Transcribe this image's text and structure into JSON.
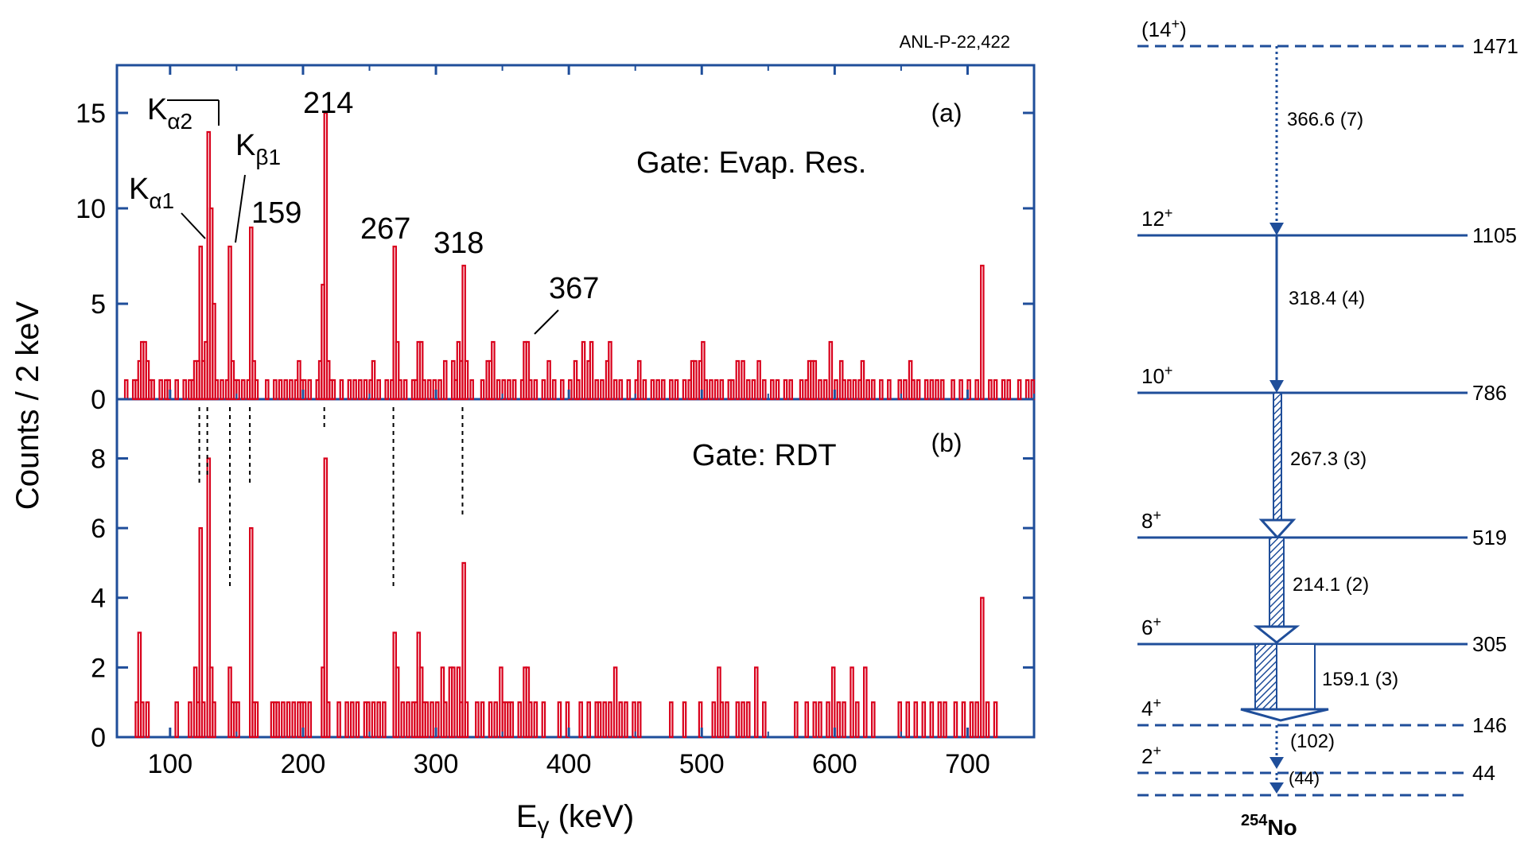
{
  "report_id": "ANL-P-22,422",
  "colors": {
    "axis": "#1f4e9a",
    "spectrum": "#d9001b",
    "text": "#000000",
    "scheme": "#1f4e9a"
  },
  "chart_data": [
    {
      "type": "histogram",
      "panel": "(a)",
      "gate": "Gate: Evap. Res.",
      "xlabel": "Eγ (keV)",
      "ylabel": "Counts / 2 keV",
      "xlim": [
        60,
        750
      ],
      "ylim": [
        0,
        17.5
      ],
      "yticks": [
        0,
        5,
        10,
        15
      ],
      "xticks": [
        100,
        200,
        300,
        400,
        500,
        600,
        700
      ],
      "bin_width_keV": 2,
      "peak_labels": [
        {
          "text": "Kα1",
          "energy": 122
        },
        {
          "text": "Kα2",
          "energy": 128
        },
        {
          "text": "Kβ1",
          "energy": 145
        },
        {
          "text": "159",
          "energy": 159
        },
        {
          "text": "214",
          "energy": 216
        },
        {
          "text": "267",
          "energy": 269
        },
        {
          "text": "318",
          "energy": 320
        },
        {
          "text": "367",
          "energy": 368
        }
      ],
      "bins": [
        [
          66,
          1
        ],
        [
          72,
          1
        ],
        [
          74,
          1
        ],
        [
          76,
          2
        ],
        [
          78,
          3
        ],
        [
          80,
          3
        ],
        [
          82,
          2
        ],
        [
          84,
          1
        ],
        [
          86,
          1
        ],
        [
          92,
          1
        ],
        [
          96,
          1
        ],
        [
          98,
          1
        ],
        [
          104,
          1
        ],
        [
          110,
          1
        ],
        [
          114,
          1
        ],
        [
          116,
          1
        ],
        [
          118,
          2
        ],
        [
          120,
          2
        ],
        [
          122,
          8
        ],
        [
          124,
          2
        ],
        [
          126,
          3
        ],
        [
          128,
          14
        ],
        [
          130,
          10
        ],
        [
          132,
          5
        ],
        [
          134,
          1
        ],
        [
          138,
          1
        ],
        [
          142,
          1
        ],
        [
          144,
          8
        ],
        [
          146,
          2
        ],
        [
          148,
          1
        ],
        [
          150,
          1
        ],
        [
          154,
          1
        ],
        [
          158,
          1
        ],
        [
          160,
          9
        ],
        [
          162,
          2
        ],
        [
          164,
          1
        ],
        [
          172,
          1
        ],
        [
          178,
          1
        ],
        [
          182,
          1
        ],
        [
          186,
          1
        ],
        [
          190,
          1
        ],
        [
          194,
          1
        ],
        [
          196,
          2
        ],
        [
          198,
          1
        ],
        [
          200,
          1
        ],
        [
          204,
          1
        ],
        [
          210,
          1
        ],
        [
          212,
          2
        ],
        [
          214,
          6
        ],
        [
          216,
          15
        ],
        [
          218,
          2
        ],
        [
          220,
          1
        ],
        [
          222,
          1
        ],
        [
          228,
          1
        ],
        [
          234,
          1
        ],
        [
          238,
          1
        ],
        [
          242,
          1
        ],
        [
          246,
          1
        ],
        [
          250,
          1
        ],
        [
          252,
          2
        ],
        [
          256,
          1
        ],
        [
          262,
          1
        ],
        [
          266,
          1
        ],
        [
          268,
          8
        ],
        [
          270,
          3
        ],
        [
          272,
          1
        ],
        [
          276,
          1
        ],
        [
          282,
          1
        ],
        [
          284,
          1
        ],
        [
          286,
          3
        ],
        [
          288,
          3
        ],
        [
          290,
          1
        ],
        [
          294,
          1
        ],
        [
          298,
          1
        ],
        [
          302,
          1
        ],
        [
          306,
          2
        ],
        [
          312,
          2
        ],
        [
          314,
          1
        ],
        [
          316,
          3
        ],
        [
          318,
          2
        ],
        [
          320,
          7
        ],
        [
          322,
          2
        ],
        [
          326,
          1
        ],
        [
          334,
          1
        ],
        [
          338,
          2
        ],
        [
          340,
          2
        ],
        [
          342,
          3
        ],
        [
          346,
          1
        ],
        [
          350,
          1
        ],
        [
          354,
          1
        ],
        [
          358,
          1
        ],
        [
          364,
          1
        ],
        [
          366,
          3
        ],
        [
          368,
          3
        ],
        [
          370,
          1
        ],
        [
          374,
          1
        ],
        [
          380,
          1
        ],
        [
          384,
          2
        ],
        [
          388,
          1
        ],
        [
          394,
          1
        ],
        [
          400,
          1
        ],
        [
          404,
          2
        ],
        [
          406,
          1
        ],
        [
          410,
          3
        ],
        [
          414,
          2
        ],
        [
          416,
          3
        ],
        [
          420,
          1
        ],
        [
          424,
          1
        ],
        [
          428,
          2
        ],
        [
          430,
          3
        ],
        [
          434,
          1
        ],
        [
          438,
          1
        ],
        [
          444,
          1
        ],
        [
          450,
          1
        ],
        [
          452,
          2
        ],
        [
          456,
          1
        ],
        [
          462,
          1
        ],
        [
          466,
          1
        ],
        [
          470,
          1
        ],
        [
          476,
          1
        ],
        [
          480,
          1
        ],
        [
          486,
          1
        ],
        [
          490,
          1
        ],
        [
          492,
          2
        ],
        [
          494,
          2
        ],
        [
          498,
          2
        ],
        [
          500,
          3
        ],
        [
          502,
          1
        ],
        [
          506,
          1
        ],
        [
          510,
          1
        ],
        [
          514,
          1
        ],
        [
          520,
          1
        ],
        [
          522,
          1
        ],
        [
          526,
          2
        ],
        [
          530,
          2
        ],
        [
          534,
          1
        ],
        [
          538,
          1
        ],
        [
          542,
          2
        ],
        [
          546,
          1
        ],
        [
          552,
          1
        ],
        [
          556,
          1
        ],
        [
          562,
          1
        ],
        [
          566,
          1
        ],
        [
          574,
          1
        ],
        [
          578,
          1
        ],
        [
          580,
          2
        ],
        [
          582,
          2
        ],
        [
          584,
          2
        ],
        [
          588,
          1
        ],
        [
          592,
          1
        ],
        [
          596,
          3
        ],
        [
          600,
          1
        ],
        [
          604,
          2
        ],
        [
          606,
          1
        ],
        [
          610,
          1
        ],
        [
          614,
          1
        ],
        [
          618,
          1
        ],
        [
          620,
          2
        ],
        [
          624,
          1
        ],
        [
          628,
          1
        ],
        [
          634,
          1
        ],
        [
          640,
          1
        ],
        [
          648,
          1
        ],
        [
          652,
          1
        ],
        [
          656,
          2
        ],
        [
          658,
          1
        ],
        [
          662,
          1
        ],
        [
          668,
          1
        ],
        [
          672,
          1
        ],
        [
          676,
          1
        ],
        [
          680,
          1
        ],
        [
          688,
          1
        ],
        [
          694,
          1
        ],
        [
          700,
          1
        ],
        [
          706,
          1
        ],
        [
          710,
          7
        ],
        [
          716,
          1
        ],
        [
          720,
          1
        ],
        [
          726,
          1
        ],
        [
          730,
          1
        ],
        [
          738,
          1
        ],
        [
          744,
          1
        ],
        [
          748,
          1
        ]
      ]
    },
    {
      "type": "histogram",
      "panel": "(b)",
      "gate": "Gate: RDT",
      "xlabel": "Eγ (keV)",
      "ylabel": "Counts / 2 keV",
      "xlim": [
        60,
        750
      ],
      "ylim": [
        0,
        9.7
      ],
      "yticks": [
        0,
        2,
        4,
        6,
        8
      ],
      "xticks": [
        100,
        200,
        300,
        400,
        500,
        600,
        700
      ],
      "bin_width_keV": 2,
      "bins": [
        [
          74,
          1
        ],
        [
          76,
          3
        ],
        [
          78,
          1
        ],
        [
          82,
          1
        ],
        [
          104,
          1
        ],
        [
          114,
          1
        ],
        [
          118,
          2
        ],
        [
          120,
          1
        ],
        [
          122,
          6
        ],
        [
          124,
          1
        ],
        [
          128,
          8
        ],
        [
          130,
          2
        ],
        [
          132,
          1
        ],
        [
          144,
          2
        ],
        [
          146,
          1
        ],
        [
          148,
          1
        ],
        [
          150,
          1
        ],
        [
          160,
          6
        ],
        [
          162,
          1
        ],
        [
          164,
          1
        ],
        [
          176,
          1
        ],
        [
          178,
          1
        ],
        [
          180,
          1
        ],
        [
          184,
          1
        ],
        [
          188,
          1
        ],
        [
          192,
          1
        ],
        [
          196,
          1
        ],
        [
          198,
          1
        ],
        [
          200,
          1
        ],
        [
          204,
          1
        ],
        [
          214,
          2
        ],
        [
          216,
          8
        ],
        [
          218,
          1
        ],
        [
          226,
          1
        ],
        [
          232,
          1
        ],
        [
          236,
          1
        ],
        [
          240,
          1
        ],
        [
          246,
          1
        ],
        [
          248,
          1
        ],
        [
          252,
          1
        ],
        [
          256,
          1
        ],
        [
          260,
          1
        ],
        [
          268,
          3
        ],
        [
          270,
          2
        ],
        [
          274,
          1
        ],
        [
          278,
          1
        ],
        [
          282,
          1
        ],
        [
          284,
          1
        ],
        [
          286,
          3
        ],
        [
          288,
          2
        ],
        [
          290,
          1
        ],
        [
          292,
          1
        ],
        [
          296,
          1
        ],
        [
          300,
          1
        ],
        [
          304,
          2
        ],
        [
          306,
          1
        ],
        [
          310,
          2
        ],
        [
          312,
          2
        ],
        [
          316,
          2
        ],
        [
          318,
          1
        ],
        [
          320,
          5
        ],
        [
          322,
          1
        ],
        [
          330,
          1
        ],
        [
          334,
          1
        ],
        [
          340,
          1
        ],
        [
          344,
          1
        ],
        [
          348,
          2
        ],
        [
          350,
          1
        ],
        [
          352,
          1
        ],
        [
          354,
          1
        ],
        [
          356,
          1
        ],
        [
          362,
          1
        ],
        [
          366,
          2
        ],
        [
          368,
          2
        ],
        [
          370,
          1
        ],
        [
          374,
          1
        ],
        [
          380,
          1
        ],
        [
          392,
          1
        ],
        [
          398,
          1
        ],
        [
          408,
          1
        ],
        [
          414,
          1
        ],
        [
          420,
          1
        ],
        [
          422,
          1
        ],
        [
          426,
          1
        ],
        [
          430,
          1
        ],
        [
          434,
          2
        ],
        [
          438,
          1
        ],
        [
          442,
          1
        ],
        [
          448,
          1
        ],
        [
          452,
          1
        ],
        [
          476,
          1
        ],
        [
          486,
          1
        ],
        [
          498,
          1
        ],
        [
          508,
          1
        ],
        [
          512,
          2
        ],
        [
          514,
          1
        ],
        [
          518,
          1
        ],
        [
          526,
          1
        ],
        [
          530,
          1
        ],
        [
          534,
          1
        ],
        [
          540,
          2
        ],
        [
          546,
          1
        ],
        [
          570,
          1
        ],
        [
          578,
          1
        ],
        [
          584,
          1
        ],
        [
          588,
          1
        ],
        [
          594,
          1
        ],
        [
          598,
          2
        ],
        [
          602,
          1
        ],
        [
          606,
          1
        ],
        [
          612,
          2
        ],
        [
          616,
          1
        ],
        [
          622,
          2
        ],
        [
          628,
          1
        ],
        [
          648,
          1
        ],
        [
          654,
          1
        ],
        [
          660,
          1
        ],
        [
          666,
          1
        ],
        [
          672,
          1
        ],
        [
          678,
          1
        ],
        [
          682,
          1
        ],
        [
          690,
          1
        ],
        [
          696,
          1
        ],
        [
          702,
          1
        ],
        [
          706,
          1
        ],
        [
          710,
          4
        ],
        [
          714,
          1
        ],
        [
          720,
          1
        ]
      ]
    }
  ],
  "level_scheme": {
    "nucleus": {
      "mass": "254",
      "symbol": "No"
    },
    "levels": [
      {
        "spin": "(14",
        "spin_sup": "+",
        "spin_tail": ")",
        "energy": "1471",
        "dashed": true
      },
      {
        "spin": "12",
        "spin_sup": "+",
        "spin_tail": "",
        "energy": "1105",
        "dashed": false
      },
      {
        "spin": "10",
        "spin_sup": "+",
        "spin_tail": "",
        "energy": "786",
        "dashed": false
      },
      {
        "spin": "8",
        "spin_sup": "+",
        "spin_tail": "",
        "energy": "519",
        "dashed": false
      },
      {
        "spin": "6",
        "spin_sup": "+",
        "spin_tail": "",
        "energy": "305",
        "dashed": false
      },
      {
        "spin": "4",
        "spin_sup": "+",
        "spin_tail": "",
        "energy": "146",
        "dashed": true
      },
      {
        "spin": "2",
        "spin_sup": "+",
        "spin_tail": "",
        "energy": "44",
        "dashed": true
      },
      {
        "spin": "",
        "spin_sup": "",
        "spin_tail": "",
        "energy": "",
        "dashed": true
      }
    ],
    "transitions": [
      {
        "label": "366.6 (7)",
        "style": "dotted"
      },
      {
        "label": "318.4 (4)",
        "style": "line"
      },
      {
        "label": "267.3 (3)",
        "style": "arrow"
      },
      {
        "label": "214.1 (2)",
        "style": "arrow"
      },
      {
        "label": "159.1 (3)",
        "style": "arrow"
      },
      {
        "label": "(102)",
        "style": "dotted"
      },
      {
        "label": "(44)",
        "style": "dotted"
      }
    ]
  }
}
